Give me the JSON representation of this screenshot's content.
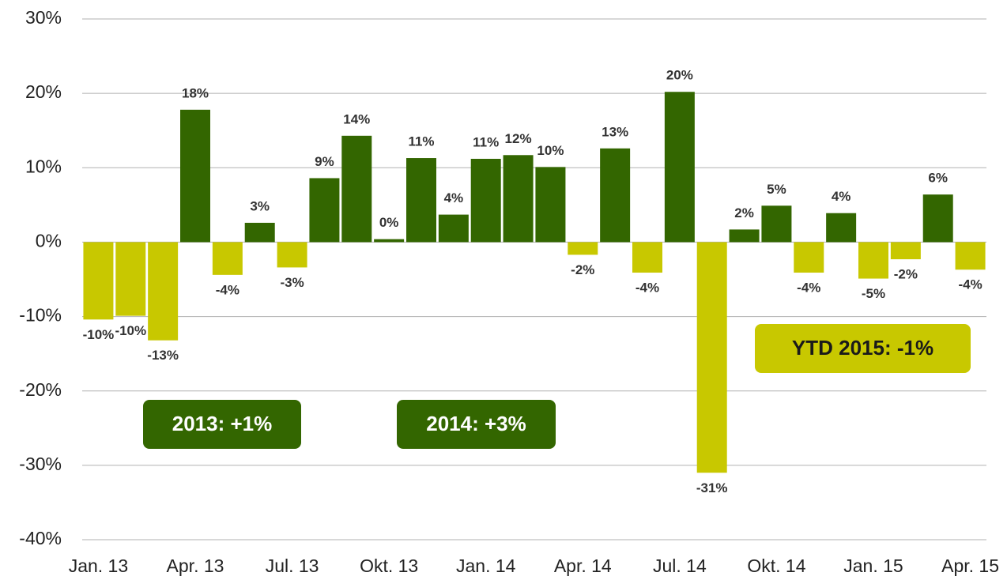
{
  "chart_data": {
    "type": "bar",
    "categories": [
      "Jan. 13",
      null,
      null,
      "Apr. 13",
      null,
      null,
      "Jul. 13",
      null,
      null,
      "Okt. 13",
      null,
      null,
      "Jan. 14",
      null,
      null,
      "Apr. 14",
      null,
      null,
      "Jul. 14",
      null,
      null,
      "Okt. 14",
      null,
      null,
      "Jan. 15",
      null,
      null,
      "Apr. 15"
    ],
    "values": [
      -10.4,
      -9.9,
      -13.2,
      17.8,
      -4.4,
      2.6,
      -3.4,
      8.6,
      14.3,
      0.4,
      11.3,
      3.7,
      11.2,
      11.7,
      10.1,
      -1.7,
      12.6,
      -4.1,
      20.2,
      -31,
      1.7,
      4.9,
      -4.1,
      3.9,
      -4.9,
      -2.3,
      6.4,
      -3.7
    ],
    "value_labels": [
      "-10%",
      "-10%",
      "-13%",
      "18%",
      "-4%",
      "3%",
      "-3%",
      "9%",
      "14%",
      "0%",
      "11%",
      "4%",
      "11%",
      "12%",
      "10%",
      "-2%",
      "13%",
      "-4%",
      "20%",
      "-31%",
      "2%",
      "5%",
      "-4%",
      "4%",
      "-5%",
      "-2%",
      "6%",
      "-4%"
    ],
    "positive_color": "#336600",
    "negative_color": "#c8c800",
    "ylim": [
      -40,
      30
    ],
    "yticks": [
      {
        "value": -40,
        "label": "-40%"
      },
      {
        "value": -30,
        "label": "-30%"
      },
      {
        "value": -20,
        "label": "-20%"
      },
      {
        "value": -10,
        "label": "-10%"
      },
      {
        "value": 0,
        "label": "0%"
      },
      {
        "value": 10,
        "label": "10%"
      },
      {
        "value": 20,
        "label": "20%"
      },
      {
        "value": 30,
        "label": "30%"
      }
    ],
    "grid": true,
    "annotations": [
      {
        "text": "2013: +1%",
        "color": "#336600",
        "text_color": "#ffffff"
      },
      {
        "text": "2014: +3%",
        "color": "#336600",
        "text_color": "#ffffff"
      },
      {
        "text": "YTD 2015: -1%",
        "color": "#c8c800",
        "text_color": "#1a1a1a"
      }
    ]
  }
}
